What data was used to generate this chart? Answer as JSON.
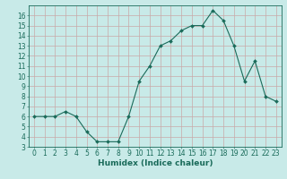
{
  "x": [
    0,
    1,
    2,
    3,
    4,
    5,
    6,
    7,
    8,
    9,
    10,
    11,
    12,
    13,
    14,
    15,
    16,
    17,
    18,
    19,
    20,
    21,
    22,
    23
  ],
  "y": [
    6,
    6,
    6,
    6.5,
    6,
    4.5,
    3.5,
    3.5,
    3.5,
    6,
    9.5,
    11,
    13,
    13.5,
    14.5,
    15,
    15,
    16.5,
    15.5,
    13,
    9.5,
    11.5,
    8,
    7.5
  ],
  "line_color": "#1a6b5a",
  "marker_color": "#1a6b5a",
  "bg_color": "#c8eae8",
  "grid_color": "#c8a8a8",
  "xlabel": "Humidex (Indice chaleur)",
  "xlim": [
    -0.5,
    23.5
  ],
  "ylim": [
    3,
    17
  ],
  "yticks": [
    3,
    4,
    5,
    6,
    7,
    8,
    9,
    10,
    11,
    12,
    13,
    14,
    15,
    16
  ],
  "xticks": [
    0,
    1,
    2,
    3,
    4,
    5,
    6,
    7,
    8,
    9,
    10,
    11,
    12,
    13,
    14,
    15,
    16,
    17,
    18,
    19,
    20,
    21,
    22,
    23
  ],
  "font_color": "#1a6b5a",
  "tick_fontsize": 5.5,
  "xlabel_fontsize": 6.5
}
